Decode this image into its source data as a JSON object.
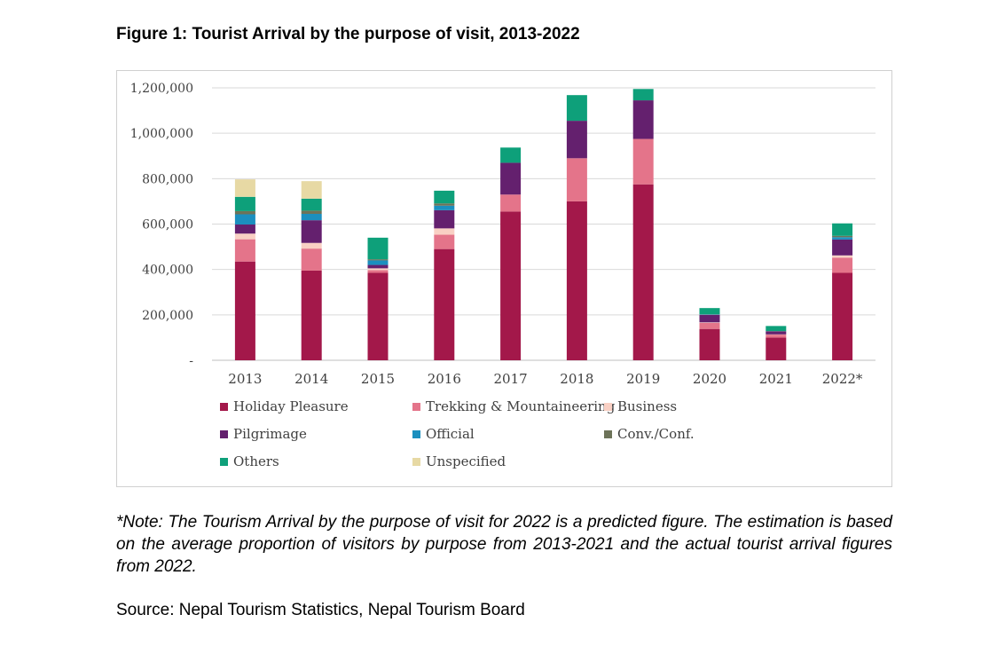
{
  "figure_title": "Figure 1: Tourist Arrival by the purpose of visit, 2013-2022",
  "note": "*Note: The Tourism Arrival by the purpose of visit for 2022 is a predicted figure. The estimation is based on the average proportion of visitors by purpose from 2013-2021 and the actual tourist arrival figures from 2022.",
  "source": "Source: Nepal Tourism Statistics, Nepal Tourism Board",
  "chart_data": {
    "type": "bar",
    "stacked": true,
    "title": "Figure 1: Tourist Arrival by the purpose of visit, 2013-2022",
    "xlabel": "",
    "ylabel": "",
    "ylim": [
      0,
      1200000
    ],
    "yticks": [
      0,
      200000,
      400000,
      600000,
      800000,
      1000000,
      1200000
    ],
    "ytick_labels": [
      "-",
      "200,000",
      "400,000",
      "600,000",
      "800,000",
      "1,000,000",
      "1,200,000"
    ],
    "grid": true,
    "legend_position": "bottom",
    "categories": [
      "2013",
      "2014",
      "2015",
      "2016",
      "2017",
      "2018",
      "2019",
      "2020",
      "2021",
      "2022*"
    ],
    "series": [
      {
        "name": "Holiday Pleasure",
        "color": "#a3184a",
        "values": [
          435000,
          395000,
          385000,
          490000,
          655000,
          700000,
          775000,
          138000,
          100000,
          385000
        ]
      },
      {
        "name": "Trekking & Mountaineering",
        "color": "#e4748a",
        "values": [
          98000,
          97000,
          12000,
          63000,
          75000,
          190000,
          200000,
          27000,
          13000,
          67000
        ]
      },
      {
        "name": "Business",
        "color": "#f9d0c4",
        "values": [
          25000,
          25000,
          8000,
          28000,
          0,
          0,
          0,
          2000,
          1000,
          10000
        ]
      },
      {
        "name": "Pilgrimage",
        "color": "#64206e",
        "values": [
          40000,
          100000,
          15000,
          80000,
          140000,
          165000,
          170000,
          33000,
          13000,
          70000
        ]
      },
      {
        "name": "Official",
        "color": "#1b8fbf",
        "values": [
          45000,
          28000,
          20000,
          20000,
          0,
          0,
          0,
          2000,
          1000,
          10000
        ]
      },
      {
        "name": "Conv./Conf.",
        "color": "#6d7359",
        "values": [
          14000,
          14000,
          5000,
          10000,
          0,
          0,
          0,
          1000,
          1000,
          6000
        ]
      },
      {
        "name": "Others",
        "color": "#0ea07a",
        "values": [
          63000,
          53000,
          95000,
          56000,
          67000,
          113000,
          50000,
          27000,
          22000,
          55000
        ]
      },
      {
        "name": "Unspecified",
        "color": "#e7d9a4",
        "values": [
          77000,
          77000,
          0,
          0,
          0,
          0,
          0,
          0,
          0,
          0
        ]
      }
    ]
  }
}
